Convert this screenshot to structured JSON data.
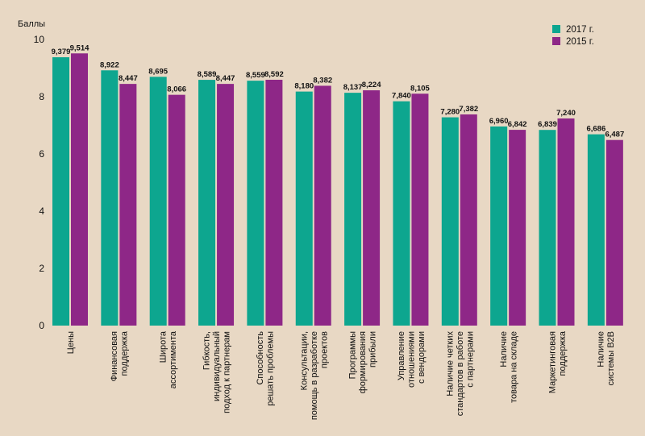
{
  "chart_data": {
    "type": "bar",
    "ylabel": "Баллы",
    "ylim": [
      0,
      10
    ],
    "yticks": [
      "0",
      "2",
      "4",
      "6",
      "8",
      "10"
    ],
    "categories": [
      [
        "Цены"
      ],
      [
        "Финансовая",
        "поддержка"
      ],
      [
        "Широта",
        "ассортимента"
      ],
      [
        "Гибкость,",
        "индивидуальный",
        "подход к партнерам"
      ],
      [
        "Способность",
        "решать проблемы"
      ],
      [
        "Консультации,",
        "помощь в разработке",
        "проектов"
      ],
      [
        "Программы",
        "формирования",
        "прибыли"
      ],
      [
        "Управление",
        "отношениями",
        "с вендорами"
      ],
      [
        "Наличие четких",
        "стандартов в работе",
        "с партнерами"
      ],
      [
        "Наличие",
        "товара на складе"
      ],
      [
        "Маркетинговая",
        "поддержка"
      ],
      [
        "Наличие",
        "системы B2B"
      ]
    ],
    "series": [
      {
        "name": "2017 г.",
        "color": "#0da68f",
        "values": [
          9.379,
          8.922,
          8.695,
          8.589,
          8.559,
          8.18,
          8.137,
          7.84,
          7.28,
          6.96,
          6.839,
          6.686
        ],
        "labels": [
          "9,379",
          "8,922",
          "8,695",
          "8,589",
          "8,559",
          "8,180",
          "8,137",
          "7,840",
          "7,280",
          "6,960",
          "6,839",
          "6,686"
        ]
      },
      {
        "name": "2015 г.",
        "color": "#8e2787",
        "values": [
          9.514,
          8.447,
          8.066,
          8.447,
          8.592,
          8.382,
          8.224,
          8.105,
          7.382,
          6.842,
          7.24,
          6.487
        ],
        "labels": [
          "9,514",
          "8,447",
          "8,066",
          "8,447",
          "8,592",
          "8,382",
          "8,224",
          "8,105",
          "7,382",
          "6,842",
          "7,240",
          "6,487"
        ]
      }
    ],
    "legend_position": "top-right",
    "grid": false
  }
}
